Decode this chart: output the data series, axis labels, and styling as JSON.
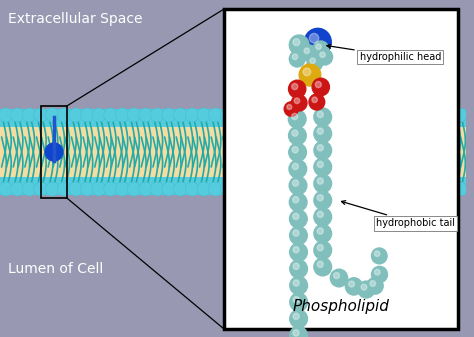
{
  "bg_color": "#9898b2",
  "membrane_fill": "#f5dca0",
  "head_color": "#55ccdd",
  "tail_color": "#22aaaa",
  "title": "Extracellular Space",
  "lumen_label": "Lumen of Cell",
  "phospholipid_label": "Phospholipid",
  "hydrophilic_head_label": "hydrophilic head",
  "hydrophobic_tail_label": "hydrophobic tail",
  "box_bg": "#ffffff",
  "blue_sphere_color": "#1144cc",
  "yellow_sphere_color": "#ddaa10",
  "red_sphere_color": "#cc1515",
  "teal_sphere_color": "#80bfbc"
}
